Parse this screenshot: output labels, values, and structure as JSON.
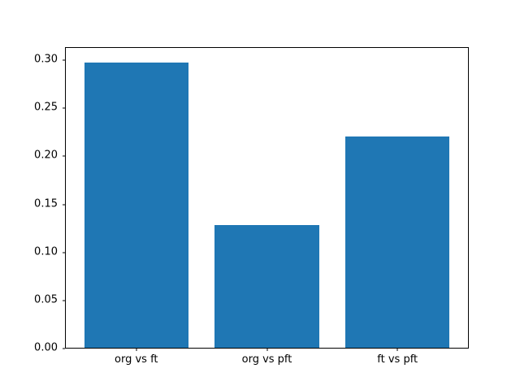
{
  "chart_data": {
    "type": "bar",
    "categories": [
      "org vs ft",
      "org vs pft",
      "ft vs pft"
    ],
    "values": [
      0.297,
      0.128,
      0.22
    ],
    "title": "",
    "xlabel": "",
    "ylabel": "",
    "ylim": [
      0,
      0.312
    ],
    "xlim": [
      -0.54,
      2.54
    ],
    "bar_width": 0.8,
    "bar_centers": [
      0,
      1,
      2
    ],
    "yticks": [
      0.0,
      0.05,
      0.1,
      0.15,
      0.2,
      0.25,
      0.3
    ],
    "ytick_labels": [
      "0.00",
      "0.05",
      "0.10",
      "0.15",
      "0.20",
      "0.25",
      "0.30"
    ],
    "bar_color": "#1f77b4",
    "spine_color": "#000000",
    "background_color": "#ffffff",
    "grid": false,
    "legend": null
  }
}
